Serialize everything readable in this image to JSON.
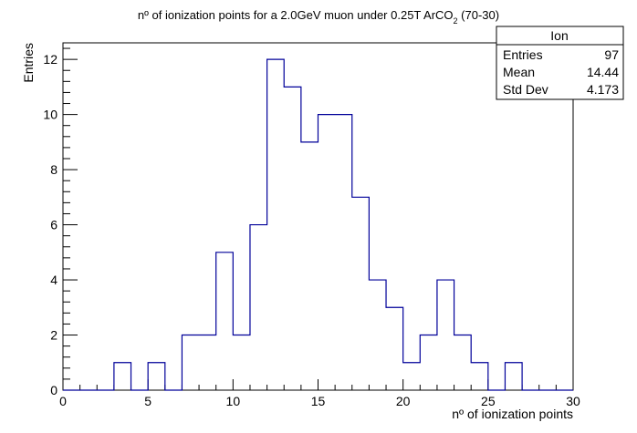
{
  "chart_data": {
    "type": "bar",
    "style": "step-histogram",
    "title": "nº of ionization points for a 2.0GeV muon under 0.25T ArCO",
    "title_subscript": "2",
    "title_suffix": " (70-30)",
    "xlabel": "nº of ionization points",
    "ylabel": "Entries",
    "xlim": [
      0,
      30
    ],
    "ylim": [
      0,
      12.6
    ],
    "x_ticks": [
      0,
      5,
      10,
      15,
      20,
      25,
      30
    ],
    "y_ticks": [
      0,
      2,
      4,
      6,
      8,
      10,
      12
    ],
    "bin_edges": [
      0,
      1,
      2,
      3,
      4,
      5,
      6,
      7,
      8,
      9,
      10,
      11,
      12,
      13,
      14,
      15,
      16,
      17,
      18,
      19,
      20,
      21,
      22,
      23,
      24,
      25,
      26,
      27,
      28,
      29,
      30
    ],
    "values": [
      0,
      0,
      0,
      1,
      0,
      1,
      0,
      2,
      2,
      5,
      2,
      6,
      12,
      11,
      9,
      10,
      10,
      7,
      4,
      3,
      1,
      2,
      4,
      2,
      1,
      0,
      1,
      0,
      0,
      0
    ],
    "line_color": "#000099",
    "grid": false,
    "legend": "top-right"
  },
  "stats": {
    "name": "Ion",
    "rows": [
      {
        "label": "Entries",
        "value": "97"
      },
      {
        "label": "Mean",
        "value": "14.44"
      },
      {
        "label": "Std Dev",
        "value": "4.173"
      }
    ]
  }
}
